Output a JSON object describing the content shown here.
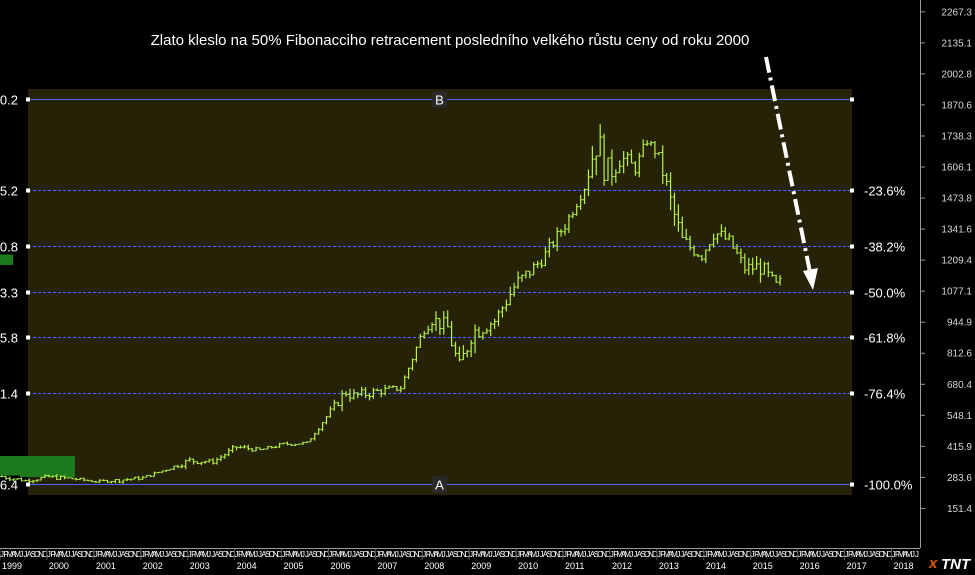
{
  "chart_data": {
    "type": "bar",
    "subtype": "ohlc",
    "title": "Zlato kleslo na 50% Fibonacciho retracement posledního velkého růstu ceny od roku 2000",
    "x_years": [
      "1999",
      "2000",
      "2001",
      "2002",
      "2003",
      "2004",
      "2005",
      "2006",
      "2007",
      "2008",
      "2009",
      "2010",
      "2011",
      "2012",
      "2013",
      "2014",
      "2015",
      "2016",
      "2017",
      "2018"
    ],
    "x_month_letters": [
      "J",
      "F",
      "M",
      "A",
      "M",
      "J",
      "J",
      "A",
      "S",
      "O",
      "N",
      "D"
    ],
    "y_ticks": [
      "2267.3",
      "2135.1",
      "2002.8",
      "1870.6",
      "1738.3",
      "1606.1",
      "1473.8",
      "1341.6",
      "1209.4",
      "1077.1",
      "944.9",
      "812.6",
      "680.4",
      "548.1",
      "415.9",
      "283.6",
      "151.4"
    ],
    "ylim": [
      119.2,
      2296.3
    ],
    "series": [
      {
        "x": [
          "1999-01",
          "1999-07",
          "2000-01",
          "2000-07",
          "2001-01",
          "2001-07",
          "2002-01",
          "2002-07",
          "2003-01",
          "2003-07",
          "2004-01",
          "2004-07",
          "2005-01",
          "2005-07",
          "2006-01",
          "2006-05",
          "2006-07",
          "2007-01",
          "2007-07",
          "2008-01",
          "2008-03",
          "2008-07",
          "2008-10",
          "2009-01",
          "2009-07",
          "2009-12",
          "2010-07",
          "2011-01",
          "2011-06",
          "2011-09",
          "2011-12",
          "2012-03",
          "2012-07",
          "2012-10",
          "2013-01",
          "2013-04",
          "2013-07",
          "2013-12",
          "2014-03",
          "2014-07",
          "2014-11",
          "2015-03",
          "2015-07",
          "2015-08"
        ],
        "close": [
          287,
          270,
          285,
          278,
          266,
          272,
          282,
          317,
          355,
          350,
          413,
          400,
          425,
          430,
          565,
          650,
          630,
          650,
          665,
          920,
          960,
          920,
          740,
          900,
          950,
          1095,
          1210,
          1360,
          1520,
          1720,
          1575,
          1650,
          1600,
          1720,
          1650,
          1450,
          1290,
          1225,
          1330,
          1290,
          1175,
          1180,
          1100,
          1120
        ],
        "high": [
          295,
          290,
          315,
          295,
          272,
          295,
          305,
          325,
          390,
          372,
          426,
          412,
          440,
          445,
          575,
          730,
          655,
          680,
          690,
          935,
          1033,
          990,
          900,
          1000,
          995,
          1220,
          1260,
          1420,
          1560,
          1895,
          1800,
          1780,
          1640,
          1795,
          1700,
          1600,
          1350,
          1260,
          1390,
          1345,
          1240,
          1290,
          1180,
          1150
        ],
        "low": [
          252,
          262,
          275,
          265,
          255,
          262,
          278,
          303,
          330,
          340,
          375,
          385,
          410,
          418,
          525,
          610,
          560,
          608,
          640,
          840,
          910,
          850,
          700,
          800,
          900,
          1050,
          1160,
          1310,
          1480,
          1530,
          1520,
          1580,
          1540,
          1700,
          1620,
          1320,
          1180,
          1190,
          1240,
          1240,
          1130,
          1140,
          1077,
          1080
        ]
      }
    ],
    "fib_levels": [
      {
        "ratio_label": "-100.0%",
        "value": "283.6",
        "left_label": "6.4",
        "anchor": "A"
      },
      {
        "ratio_label": "-76.4%",
        "value": "",
        "left_label": "1.4",
        "anchor": ""
      },
      {
        "ratio_label": "-61.8%",
        "value": "",
        "left_label": "5.8",
        "anchor": ""
      },
      {
        "ratio_label": "-50.0%",
        "value": "1077.1",
        "left_label": "3.3",
        "anchor": ""
      },
      {
        "ratio_label": "-38.2%",
        "value": "",
        "left_label": "0.8",
        "anchor": ""
      },
      {
        "ratio_label": "-23.6%",
        "value": "",
        "left_label": "5.2",
        "anchor": ""
      },
      {
        "ratio_label": "",
        "value": "",
        "left_label": "0.2",
        "anchor": "B"
      }
    ],
    "fib_range": {
      "low": 255,
      "high": 1895
    },
    "grid": false,
    "legend": "none",
    "colors": {
      "background": "#000000",
      "fib_zone": "#262208",
      "bars": "#b6f24a",
      "level_line": "#4a60ff",
      "arrow": "#ffffff",
      "left_box": "#1c7a1c"
    }
  },
  "logo": {
    "text": "TNT"
  }
}
